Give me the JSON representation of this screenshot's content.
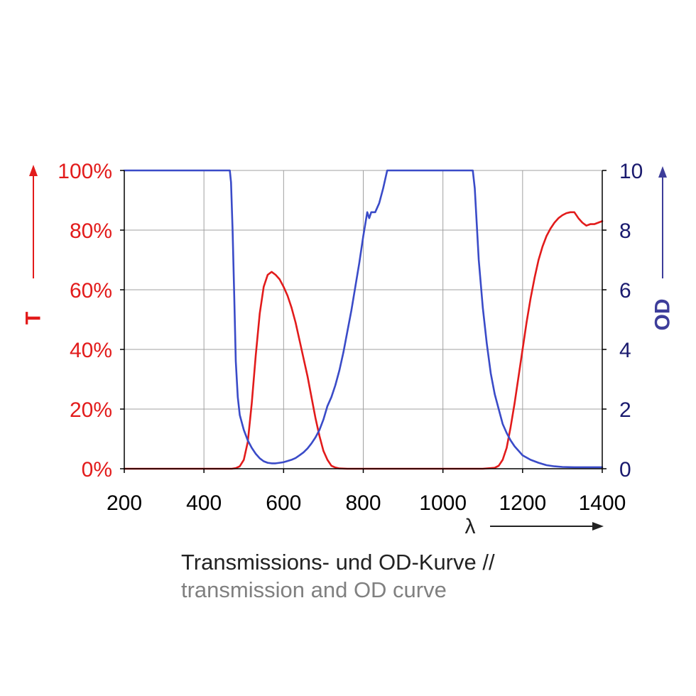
{
  "chart_data": {
    "type": "line",
    "title": "Transmissions- und OD-Kurve //",
    "subtitle": "transmission and OD curve",
    "xlabel": "λ",
    "ylabel_left": "T",
    "ylabel_right": "OD",
    "xlim": [
      200,
      1400
    ],
    "ylim_left": [
      0,
      100
    ],
    "ylim_right": [
      0,
      10
    ],
    "grid": true,
    "x_ticks": [
      "200",
      "400",
      "600",
      "800",
      "1000",
      "1200",
      "1400"
    ],
    "y_ticks_left": [
      "0%",
      "20%",
      "40%",
      "60%",
      "80%",
      "100%"
    ],
    "y_ticks_right": [
      "0",
      "2",
      "4",
      "6",
      "8",
      "10"
    ],
    "colors": {
      "transmission": "#e21b1b",
      "od": "#3a4bc8",
      "left_axis": "#e21b1b",
      "right_axis": "#1a1a6e",
      "od_title": "#3d3d9a",
      "grid": "#a0a0a0"
    },
    "series": [
      {
        "axis": "left",
        "x": [
          200,
          470,
          480,
          490,
          500,
          510,
          520,
          530,
          540,
          550,
          560,
          570,
          580,
          590,
          600,
          610,
          620,
          630,
          640,
          650,
          660,
          670,
          680,
          690,
          700,
          710,
          720,
          730,
          740,
          760,
          800,
          900,
          1000,
          1100,
          1130,
          1140,
          1150,
          1160,
          1170,
          1180,
          1190,
          1200,
          1210,
          1220,
          1230,
          1240,
          1250,
          1260,
          1270,
          1280,
          1290,
          1300,
          1310,
          1320,
          1330,
          1340,
          1350,
          1360,
          1370,
          1380,
          1390,
          1400
        ],
        "values": [
          0,
          0,
          0.2,
          0.8,
          3,
          9,
          22,
          38,
          52,
          61,
          65,
          66,
          65,
          63.5,
          61,
          58,
          54,
          49,
          43,
          37,
          31,
          24,
          17,
          11,
          6,
          3,
          1,
          0.4,
          0.1,
          0,
          0,
          0,
          0,
          0,
          0.3,
          1,
          3,
          7,
          14,
          22,
          31,
          40,
          49,
          57,
          64,
          70,
          74.5,
          78,
          80.5,
          82.5,
          84,
          85,
          85.7,
          86,
          86,
          84,
          82.5,
          81.5,
          82,
          82,
          82.5,
          83
        ]
      },
      {
        "axis": "right",
        "x": [
          200,
          465,
          468,
          472,
          476,
          480,
          485,
          490,
          500,
          510,
          520,
          530,
          540,
          550,
          560,
          570,
          580,
          590,
          600,
          610,
          620,
          630,
          640,
          650,
          660,
          670,
          680,
          690,
          700,
          710,
          720,
          730,
          740,
          750,
          760,
          770,
          780,
          790,
          800,
          810,
          815,
          820,
          830,
          840,
          850,
          860,
          865,
          900,
          1000,
          1075,
          1080,
          1085,
          1090,
          1100,
          1110,
          1120,
          1130,
          1140,
          1150,
          1160,
          1170,
          1180,
          1190,
          1200,
          1220,
          1240,
          1260,
          1280,
          1300,
          1330,
          1350,
          1400
        ],
        "values": [
          10,
          10,
          9.6,
          8,
          5.8,
          3.6,
          2.4,
          1.8,
          1.3,
          0.95,
          0.7,
          0.5,
          0.35,
          0.25,
          0.2,
          0.18,
          0.18,
          0.2,
          0.22,
          0.26,
          0.3,
          0.36,
          0.45,
          0.55,
          0.68,
          0.85,
          1.05,
          1.3,
          1.65,
          2.1,
          2.4,
          2.8,
          3.3,
          3.9,
          4.6,
          5.3,
          6.1,
          6.9,
          7.8,
          8.6,
          8.4,
          8.6,
          8.6,
          8.9,
          9.4,
          10,
          10,
          10,
          10,
          10,
          9.4,
          8.2,
          7,
          5.4,
          4.2,
          3.2,
          2.5,
          2,
          1.5,
          1.2,
          0.95,
          0.75,
          0.6,
          0.45,
          0.3,
          0.2,
          0.12,
          0.08,
          0.06,
          0.05,
          0.05,
          0.05
        ]
      }
    ]
  }
}
